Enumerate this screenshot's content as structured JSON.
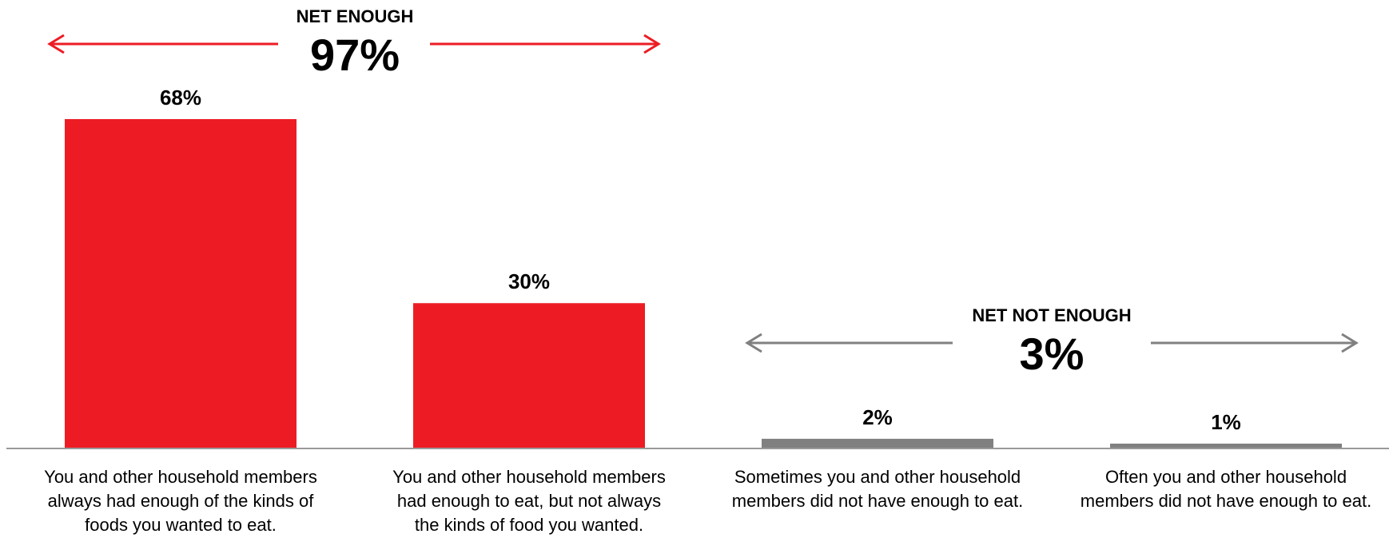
{
  "chart_data": {
    "type": "bar",
    "categories": [
      [
        "You and other household members",
        "always had enough of the kinds of",
        "foods you wanted to eat."
      ],
      [
        "You and other household members",
        "had enough to eat, but not always",
        "the kinds of food you wanted."
      ],
      [
        "Sometimes you and other household",
        "members did not have enough to eat."
      ],
      [
        "Often you and other household",
        "members did not have enough to eat."
      ]
    ],
    "values": [
      68,
      30,
      2,
      1
    ],
    "value_labels": [
      "68%",
      "30%",
      "2%",
      "1%"
    ],
    "bar_colors": [
      "#ed1c24",
      "#ed1c24",
      "#808080",
      "#808080"
    ],
    "ylim": [
      0,
      70
    ],
    "grid": false,
    "groups": [
      {
        "title": "NET ENOUGH",
        "value": 97,
        "value_label": "97%",
        "color": "#ed1c24",
        "category_range": [
          0,
          1
        ]
      },
      {
        "title": "NET NOT ENOUGH",
        "value": 3,
        "value_label": "3%",
        "color": "#808080",
        "category_range": [
          2,
          3
        ]
      }
    ]
  }
}
